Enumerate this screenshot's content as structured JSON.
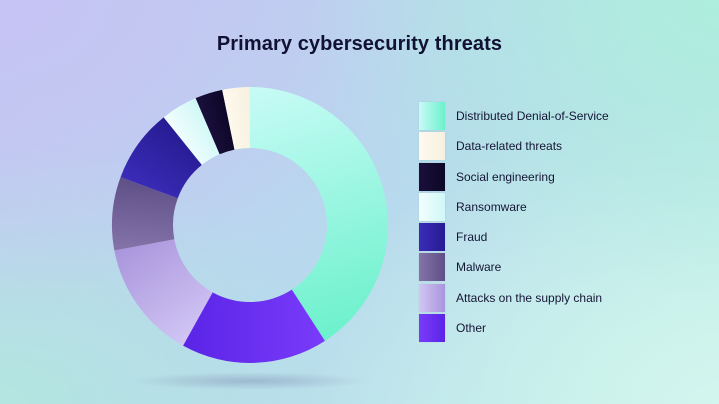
{
  "chart_data": {
    "type": "pie",
    "donut": true,
    "title": "Primary cybersecurity threats",
    "legend_position": "right",
    "categories": [
      "Distributed Denial-of-Service",
      "Data-related threats",
      "Social engineering",
      "Ransomware",
      "Fraud",
      "Malware",
      "Attacks on the supply chain",
      "Other"
    ],
    "values": [
      38,
      3,
      3,
      4,
      8,
      8,
      13,
      16
    ],
    "order_on_chart": [
      0,
      7,
      6,
      5,
      4,
      3,
      2,
      1
    ],
    "colors": [
      [
        "#c8fbf6",
        "#6cf1cc"
      ],
      [
        "#fffaee",
        "#f6f0e0"
      ],
      [
        "#1a0f3c",
        "#0d0726"
      ],
      [
        "#f3fefe",
        "#cff8f6"
      ],
      [
        "#3b2cb8",
        "#261b92"
      ],
      [
        "#8474aa",
        "#5e4f86"
      ],
      [
        "#d1c6f4",
        "#a995dc"
      ],
      [
        "#7a3bfa",
        "#5a24e6"
      ]
    ]
  }
}
